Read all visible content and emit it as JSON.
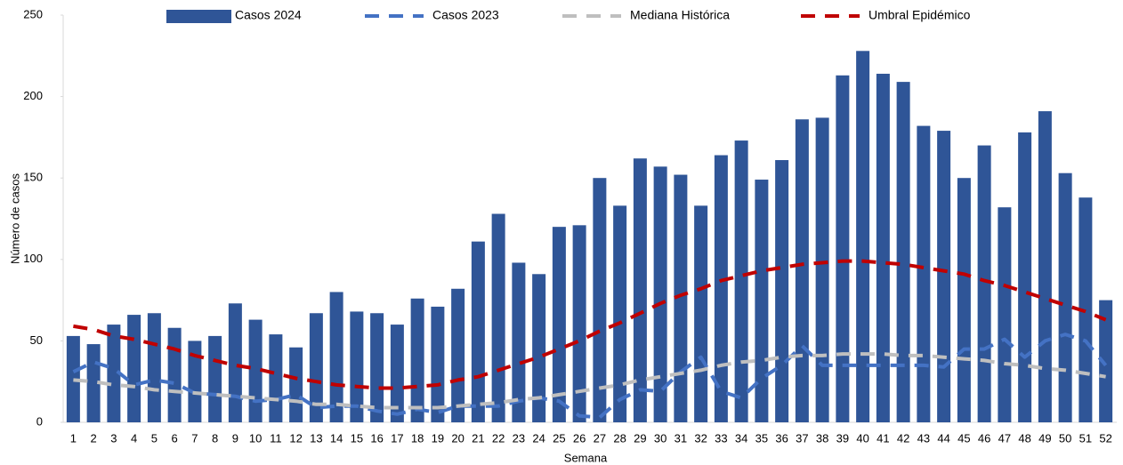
{
  "chart_data": {
    "type": "bar",
    "x_label": "Semana",
    "y_label": "Número de casos",
    "categories": [
      "1",
      "2",
      "3",
      "4",
      "5",
      "6",
      "7",
      "8",
      "9",
      "10",
      "11",
      "12",
      "13",
      "14",
      "15",
      "16",
      "17",
      "18",
      "19",
      "20",
      "21",
      "22",
      "23",
      "24",
      "25",
      "26",
      "27",
      "28",
      "29",
      "30",
      "31",
      "32",
      "33",
      "34",
      "35",
      "36",
      "37",
      "38",
      "39",
      "40",
      "41",
      "42",
      "43",
      "44",
      "45",
      "46",
      "47",
      "48",
      "49",
      "50",
      "51",
      "52"
    ],
    "ylim": [
      0,
      250
    ],
    "yticks": [
      0,
      50,
      100,
      150,
      200,
      250
    ],
    "grid": false,
    "legend": "top",
    "series": [
      {
        "name": "Casos 2024",
        "type": "bar",
        "color": "#2f5597",
        "values": [
          53,
          48,
          60,
          66,
          67,
          58,
          50,
          53,
          73,
          63,
          54,
          46,
          67,
          80,
          68,
          67,
          60,
          76,
          71,
          82,
          111,
          128,
          98,
          91,
          120,
          121,
          150,
          133,
          162,
          157,
          152,
          133,
          164,
          173,
          149,
          161,
          186,
          187,
          213,
          228,
          214,
          209,
          182,
          179,
          150,
          170,
          132,
          178,
          191,
          153,
          138,
          75
        ]
      },
      {
        "name": "Casos 2023",
        "type": "line",
        "color": "#4472c4",
        "values": [
          31,
          37,
          33,
          23,
          26,
          24,
          18,
          17,
          16,
          13,
          14,
          17,
          9,
          10,
          10,
          7,
          5,
          8,
          6,
          10,
          10,
          10,
          13,
          15,
          13,
          4,
          3,
          14,
          20,
          19,
          31,
          40,
          19,
          15,
          27,
          35,
          47,
          35,
          35,
          35,
          35,
          35,
          35,
          34,
          45,
          45,
          51,
          40,
          50,
          54,
          50,
          35
        ]
      },
      {
        "name": "Mediana Histórica",
        "type": "line",
        "color": "#bfbfbf",
        "values": [
          26,
          25,
          23,
          22,
          20,
          19,
          18,
          17,
          16,
          15,
          14,
          13,
          11,
          11,
          10,
          9,
          9,
          9,
          9,
          10,
          11,
          12,
          14,
          15,
          17,
          19,
          21,
          23,
          26,
          28,
          30,
          32,
          35,
          37,
          38,
          40,
          41,
          41,
          42,
          42,
          42,
          41,
          41,
          40,
          39,
          38,
          36,
          35,
          33,
          32,
          30,
          28
        ]
      },
      {
        "name": "Umbral Epidémico",
        "type": "line",
        "color": "#c00000",
        "values": [
          59,
          57,
          53,
          51,
          48,
          45,
          41,
          38,
          35,
          33,
          30,
          27,
          25,
          23,
          22,
          21,
          21,
          22,
          23,
          26,
          28,
          32,
          36,
          40,
          45,
          50,
          56,
          61,
          67,
          73,
          78,
          82,
          87,
          90,
          93,
          95,
          97,
          98,
          99,
          99,
          98,
          97,
          95,
          93,
          91,
          87,
          84,
          80,
          76,
          72,
          68,
          63
        ]
      }
    ]
  }
}
